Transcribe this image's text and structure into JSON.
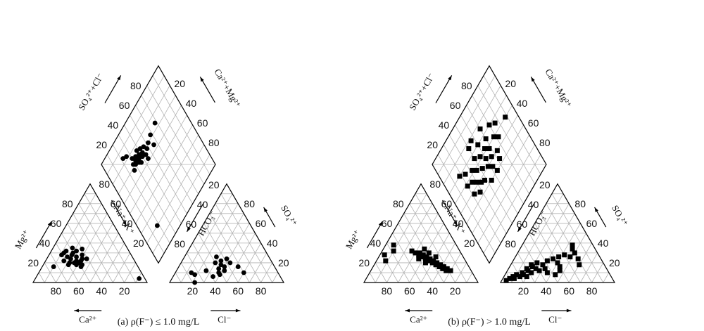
{
  "chart_data": [
    {
      "type": "scatter",
      "subtype": "piper",
      "caption": "(a)  ρ(F⁻) ≤ 1.0 mg/L",
      "marker": "circle",
      "color": "#000000",
      "ticks": [
        "20",
        "40",
        "60",
        "80"
      ],
      "cation_labels": {
        "left_axis": "Mg²⁺",
        "right_axis": "Na⁺+K⁺",
        "bottom_axis": "Ca²⁺"
      },
      "anion_labels": {
        "left_axis": "HCO₃⁻",
        "right_axis": "SO₄²⁺",
        "bottom_axis": "Cl⁻"
      },
      "diamond_labels": {
        "upper_left": "SO₄²⁺+Cl⁻",
        "upper_right": "Ca²⁺+Mg²⁺"
      },
      "cation_points": [
        {
          "mg": 35,
          "ca": 48
        },
        {
          "mg": 32,
          "ca": 46
        },
        {
          "mg": 30,
          "ca": 50
        },
        {
          "mg": 28,
          "ca": 52
        },
        {
          "mg": 26,
          "ca": 49
        },
        {
          "mg": 24,
          "ca": 45
        },
        {
          "mg": 22,
          "ca": 47
        },
        {
          "mg": 22,
          "ca": 51
        },
        {
          "mg": 20,
          "ca": 50
        },
        {
          "mg": 18,
          "ca": 48
        },
        {
          "mg": 18,
          "ca": 53
        },
        {
          "mg": 16,
          "ca": 50
        },
        {
          "mg": 24,
          "ca": 55
        },
        {
          "mg": 26,
          "ca": 57
        },
        {
          "mg": 30,
          "ca": 58
        },
        {
          "mg": 20,
          "ca": 58
        },
        {
          "mg": 28,
          "ca": 43
        },
        {
          "mg": 24,
          "ca": 41
        },
        {
          "mg": 34,
          "ca": 40
        },
        {
          "mg": 20,
          "ca": 54
        },
        {
          "mg": 18,
          "ca": 60
        },
        {
          "mg": 22,
          "ca": 62
        },
        {
          "mg": 28,
          "ca": 61
        },
        {
          "mg": 32,
          "ca": 55
        },
        {
          "mg": 16,
          "ca": 74
        },
        {
          "mg": 4,
          "ca": 5
        }
      ],
      "anion_points": [
        {
          "so4": 26,
          "cl": 28
        },
        {
          "so4": 22,
          "cl": 34
        },
        {
          "so4": 20,
          "cl": 30
        },
        {
          "so4": 18,
          "cl": 36
        },
        {
          "so4": 16,
          "cl": 40
        },
        {
          "so4": 14,
          "cl": 36
        },
        {
          "so4": 12,
          "cl": 42
        },
        {
          "so4": 10,
          "cl": 38
        },
        {
          "so4": 8,
          "cl": 40
        },
        {
          "so4": 12,
          "cl": 26
        },
        {
          "so4": 10,
          "cl": 14
        },
        {
          "so4": 8,
          "cl": 18
        },
        {
          "so4": 20,
          "cl": 43
        },
        {
          "so4": 16,
          "cl": 52
        },
        {
          "so4": 10,
          "cl": 60
        },
        {
          "so4": 6,
          "cl": 35
        },
        {
          "so4": 24,
          "cl": 38
        },
        {
          "so4": 0,
          "cl": 22
        }
      ],
      "diamond_points": [
        {
          "so4cl": 52,
          "camg": 70
        },
        {
          "so4cl": 48,
          "camg": 68
        },
        {
          "so4cl": 46,
          "camg": 72
        },
        {
          "so4cl": 44,
          "camg": 66
        },
        {
          "so4cl": 42,
          "camg": 70
        },
        {
          "so4cl": 42,
          "camg": 74
        },
        {
          "so4cl": 40,
          "camg": 68
        },
        {
          "so4cl": 38,
          "camg": 72
        },
        {
          "so4cl": 38,
          "camg": 76
        },
        {
          "so4cl": 36,
          "camg": 70
        },
        {
          "so4cl": 36,
          "camg": 66
        },
        {
          "so4cl": 34,
          "camg": 74
        },
        {
          "so4cl": 34,
          "camg": 68
        },
        {
          "so4cl": 32,
          "camg": 72
        },
        {
          "so4cl": 30,
          "camg": 70
        },
        {
          "so4cl": 30,
          "camg": 76
        },
        {
          "so4cl": 28,
          "camg": 72
        },
        {
          "so4cl": 26,
          "camg": 68
        },
        {
          "so4cl": 44,
          "camg": 62
        },
        {
          "so4cl": 56,
          "camg": 64
        },
        {
          "so4cl": 58,
          "camg": 72
        },
        {
          "so4cl": 26,
          "camg": 82
        },
        {
          "so4cl": 22,
          "camg": 84
        },
        {
          "so4cl": 68,
          "camg": 74
        },
        {
          "so4cl": 18,
          "camg": 20
        }
      ]
    },
    {
      "type": "scatter",
      "subtype": "piper",
      "caption": "(b)  ρ(F⁻) > 1.0 mg/L",
      "marker": "square",
      "color": "#000000",
      "ticks": [
        "20",
        "40",
        "60",
        "80"
      ],
      "cation_labels": {
        "left_axis": "Mg²⁺",
        "right_axis": "Na⁺+K⁺",
        "bottom_axis": "Ca²⁺"
      },
      "anion_labels": {
        "left_axis": "HCO₃⁻",
        "right_axis": "SO₄²⁺",
        "bottom_axis": "Cl⁻"
      },
      "diamond_labels": {
        "upper_left": "SO₄²⁺+Cl⁻",
        "upper_right": "Ca²⁺+Mg²⁺"
      },
      "cation_points": [
        {
          "mg": 38,
          "ca": 55
        },
        {
          "mg": 32,
          "ca": 58
        },
        {
          "mg": 28,
          "ca": 68
        },
        {
          "mg": 22,
          "ca": 70
        },
        {
          "mg": 32,
          "ca": 42
        },
        {
          "mg": 30,
          "ca": 40
        },
        {
          "mg": 30,
          "ca": 36
        },
        {
          "mg": 28,
          "ca": 38
        },
        {
          "mg": 28,
          "ca": 34
        },
        {
          "mg": 26,
          "ca": 36
        },
        {
          "mg": 26,
          "ca": 32
        },
        {
          "mg": 24,
          "ca": 34
        },
        {
          "mg": 24,
          "ca": 30
        },
        {
          "mg": 22,
          "ca": 32
        },
        {
          "mg": 22,
          "ca": 28
        },
        {
          "mg": 20,
          "ca": 30
        },
        {
          "mg": 20,
          "ca": 26
        },
        {
          "mg": 18,
          "ca": 28
        },
        {
          "mg": 18,
          "ca": 24
        },
        {
          "mg": 16,
          "ca": 26
        },
        {
          "mg": 16,
          "ca": 22
        },
        {
          "mg": 14,
          "ca": 24
        },
        {
          "mg": 14,
          "ca": 20
        },
        {
          "mg": 12,
          "ca": 22
        },
        {
          "mg": 12,
          "ca": 18
        },
        {
          "mg": 30,
          "ca": 28
        },
        {
          "mg": 26,
          "ca": 24
        },
        {
          "mg": 34,
          "ca": 30
        },
        {
          "mg": 24,
          "ca": 40
        },
        {
          "mg": 20,
          "ca": 36
        }
      ],
      "anion_points": [
        {
          "so4": 4,
          "cl": 6
        },
        {
          "so4": 6,
          "cl": 8
        },
        {
          "so4": 8,
          "cl": 10
        },
        {
          "so4": 4,
          "cl": 10
        },
        {
          "so4": 6,
          "cl": 14
        },
        {
          "so4": 10,
          "cl": 14
        },
        {
          "so4": 8,
          "cl": 16
        },
        {
          "so4": 12,
          "cl": 18
        },
        {
          "so4": 14,
          "cl": 16
        },
        {
          "so4": 16,
          "cl": 20
        },
        {
          "so4": 18,
          "cl": 18
        },
        {
          "so4": 20,
          "cl": 22
        },
        {
          "so4": 14,
          "cl": 24
        },
        {
          "so4": 12,
          "cl": 28
        },
        {
          "so4": 18,
          "cl": 28
        },
        {
          "so4": 22,
          "cl": 30
        },
        {
          "so4": 24,
          "cl": 34
        },
        {
          "so4": 26,
          "cl": 38
        },
        {
          "so4": 28,
          "cl": 42
        },
        {
          "so4": 20,
          "cl": 40
        },
        {
          "so4": 16,
          "cl": 44
        },
        {
          "so4": 12,
          "cl": 46
        },
        {
          "so4": 8,
          "cl": 44
        },
        {
          "so4": 10,
          "cl": 36
        },
        {
          "so4": 30,
          "cl": 50
        },
        {
          "so4": 24,
          "cl": 56
        },
        {
          "so4": 18,
          "cl": 60
        },
        {
          "so4": 34,
          "cl": 46
        },
        {
          "so4": 38,
          "cl": 44
        },
        {
          "so4": 10,
          "cl": 22
        },
        {
          "so4": 2,
          "cl": 4
        },
        {
          "so4": 6,
          "cl": 20
        },
        {
          "so4": 14,
          "cl": 32
        },
        {
          "so4": 26,
          "cl": 48
        }
      ],
      "diamond_points": [
        {
          "so4cl": 88,
          "camg": 60
        },
        {
          "so4cl": 76,
          "camg": 66
        },
        {
          "so4cl": 72,
          "camg": 56
        },
        {
          "so4cl": 70,
          "camg": 70
        },
        {
          "so4cl": 68,
          "camg": 60
        },
        {
          "so4cl": 64,
          "camg": 50
        },
        {
          "so4cl": 62,
          "camg": 44
        },
        {
          "so4cl": 60,
          "camg": 66
        },
        {
          "so4cl": 58,
          "camg": 58
        },
        {
          "so4cl": 56,
          "camg": 52
        },
        {
          "so4cl": 54,
          "camg": 62
        },
        {
          "so4cl": 52,
          "camg": 46
        },
        {
          "so4cl": 50,
          "camg": 70
        },
        {
          "so4cl": 50,
          "camg": 56
        },
        {
          "so4cl": 48,
          "camg": 50
        },
        {
          "so4cl": 46,
          "camg": 62
        },
        {
          "so4cl": 44,
          "camg": 40
        },
        {
          "so4cl": 42,
          "camg": 54
        },
        {
          "so4cl": 40,
          "camg": 66
        },
        {
          "so4cl": 38,
          "camg": 46
        },
        {
          "so4cl": 36,
          "camg": 58
        },
        {
          "so4cl": 34,
          "camg": 48
        },
        {
          "so4cl": 32,
          "camg": 62
        },
        {
          "so4cl": 30,
          "camg": 52
        },
        {
          "so4cl": 28,
          "camg": 44
        },
        {
          "so4cl": 26,
          "camg": 56
        },
        {
          "so4cl": 24,
          "camg": 66
        },
        {
          "so4cl": 22,
          "camg": 48
        },
        {
          "so4cl": 20,
          "camg": 58
        },
        {
          "so4cl": 18,
          "camg": 70
        },
        {
          "so4cl": 40,
          "camg": 76
        },
        {
          "so4cl": 60,
          "camg": 76
        },
        {
          "so4cl": 46,
          "camg": 78
        },
        {
          "so4cl": 54,
          "camg": 40
        }
      ]
    }
  ]
}
